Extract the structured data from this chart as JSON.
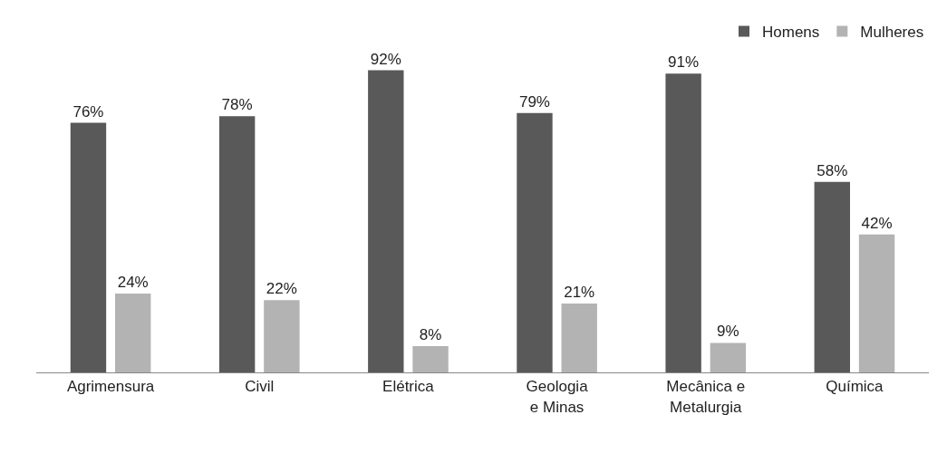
{
  "chart_data": {
    "type": "bar",
    "categories": [
      "Agrimensura",
      "Civil",
      "Elétrica",
      "Geologia e Minas",
      "Mecânica e Metalurgia",
      "Química"
    ],
    "series": [
      {
        "name": "Homens",
        "color": "#595959",
        "values": [
          76,
          78,
          92,
          79,
          91,
          58
        ],
        "value_labels": [
          "76%",
          "78%",
          "92%",
          "79%",
          "91%",
          "58%"
        ]
      },
      {
        "name": "Mulheres",
        "color": "#b3b3b3",
        "values": [
          24,
          22,
          8,
          21,
          9,
          42
        ],
        "value_labels": [
          "24%",
          "22%",
          "8%",
          "21%",
          "9%",
          "42%"
        ]
      }
    ],
    "legend": "top right",
    "grid": false,
    "tick_labels": "x"
  }
}
